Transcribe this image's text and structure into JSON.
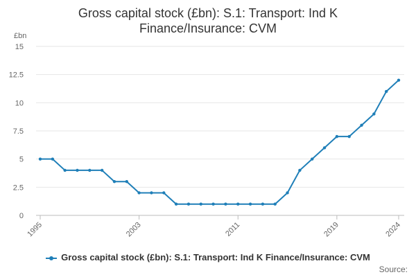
{
  "chart_data": {
    "type": "line",
    "title_lines": [
      "Gross capital stock (£bn): S.1: Transport: Ind K",
      "Finance/Insurance: CVM"
    ],
    "ylabel": "£bn",
    "ylim": [
      0,
      15
    ],
    "y_ticks": [
      0,
      2.5,
      5,
      7.5,
      10,
      12.5,
      15
    ],
    "y_tick_labels": [
      "0",
      "2.5",
      "5",
      "7.5",
      "10",
      "12.5",
      "15"
    ],
    "x_ticks": [
      "1995",
      "2003",
      "2011",
      "2019",
      "2024"
    ],
    "x": [
      1995,
      1996,
      1997,
      1998,
      1999,
      2000,
      2001,
      2002,
      2003,
      2004,
      2005,
      2006,
      2007,
      2008,
      2009,
      2010,
      2011,
      2012,
      2013,
      2014,
      2015,
      2016,
      2017,
      2018,
      2019,
      2020,
      2021,
      2022,
      2023,
      2024
    ],
    "series": [
      {
        "name": "Gross capital stock (£bn): S.1: Transport: Ind K Finance/Insurance: CVM",
        "color": "#1f7fb8",
        "values": [
          5,
          5,
          4,
          4,
          4,
          4,
          3,
          3,
          2,
          2,
          2,
          1,
          1,
          1,
          1,
          1,
          1,
          1,
          1,
          1,
          2,
          4,
          5,
          6,
          7,
          7,
          8,
          9,
          11,
          12
        ]
      }
    ],
    "grid": "horizontal",
    "legend_position": "bottom"
  },
  "footer": {
    "source_label": "Source:"
  }
}
